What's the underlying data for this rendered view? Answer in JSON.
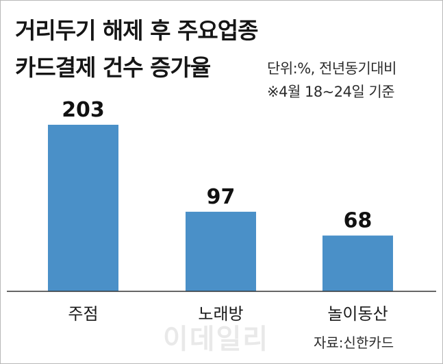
{
  "chart_data": {
    "type": "bar",
    "title": "거리두기 해제 후 주요업종 카드결제 건수 증가율",
    "title_lines": [
      "거리두기 해제 후 주요업종",
      "카드결제 건수 증가율"
    ],
    "unit_note": "단위:%, 전년동기대비",
    "period_note": "※4월 18~24일 기준",
    "source": "자료:신한카드",
    "watermark": "이데일리",
    "categories": [
      "주점",
      "노래방",
      "놀이동산"
    ],
    "values": [
      203,
      97,
      68
    ],
    "value_labels": [
      "203",
      "97",
      "68"
    ],
    "ylim": [
      0,
      203
    ],
    "bar_color": "#4a90c8",
    "grid": false,
    "legend": "none"
  }
}
